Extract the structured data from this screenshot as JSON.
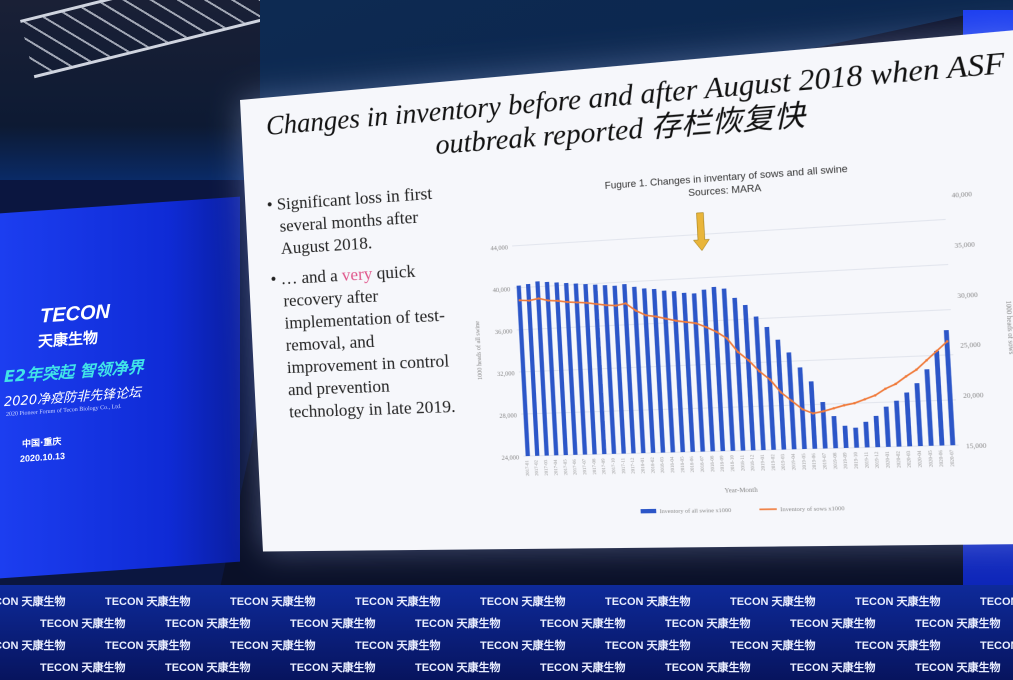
{
  "venue": {
    "pillar": {
      "logo": "TECON",
      "logo_cn": "天康生物",
      "slogan": "E2年突起 智领净界",
      "forum": "2020净疫防非先锋论坛",
      "forum_en": "2020 Pioneer Forum of Tecon Biology Co., Ltd.",
      "location": "中国·重庆",
      "date": "2020.10.13"
    },
    "stage_brand": "TECON 天康生物"
  },
  "slide": {
    "title": "Changes in inventory before and after August 2018 when ASF outbreak reported 存栏恢复快",
    "bullets": [
      {
        "text": "Significant loss in first several months after August 2018."
      },
      {
        "pre": "… and a ",
        "highlight": "very",
        "post": " quick recovery after implementation of test-removal, and improvement in control and prevention technology in late 2019."
      }
    ],
    "colors": {
      "bars": "#2c56c8",
      "line": "#f07a3a",
      "arrow": "#e9b53a",
      "highlight": "#e0558a"
    }
  },
  "chart_data": {
    "type": "bar+line",
    "title": "Fugure 1. Changes in inventary of sows and all swine",
    "subtitle": "Sources: MARA",
    "xlabel": "Year-Month",
    "ylabel_left": "1000 heads of all swine",
    "ylabel_right": "1000 heads of sows",
    "yleft_ticks": [
      "44,000",
      "40,000",
      "36,000",
      "32,000",
      "28,000",
      "24,000"
    ],
    "yleft_lim": [
      24000,
      44000
    ],
    "yright_ticks": [
      "40,000",
      "35,000",
      "30,000",
      "25,000",
      "20,000",
      "15,000"
    ],
    "yright_lim": [
      15000,
      40000
    ],
    "annotation": "arrow at 2018-08",
    "legend": "bottom",
    "x": [
      "2017-01",
      "2017-02",
      "2017-03",
      "2017-04",
      "2017-05",
      "2017-06",
      "2017-07",
      "2017-08",
      "2017-09",
      "2017-10",
      "2017-11",
      "2017-12",
      "2018-01",
      "2018-02",
      "2018-03",
      "2018-04",
      "2018-05",
      "2018-06",
      "2018-07",
      "2018-08",
      "2018-09",
      "2018-10",
      "2018-11",
      "2018-12",
      "2019-01",
      "2019-02",
      "2019-03",
      "2019-04",
      "2019-05",
      "2019-06",
      "2019-07",
      "2019-08",
      "2019-09",
      "2019-10",
      "2019-11",
      "2019-12",
      "2020-01",
      "2020-02",
      "2020-03",
      "2020-04",
      "2020-05",
      "2020-06",
      "2020-07"
    ],
    "series": [
      {
        "name": "Inventory of all swine x1000",
        "type": "bar",
        "axis": "left",
        "values": [
          40200,
          40300,
          40500,
          40400,
          40300,
          40200,
          40100,
          40000,
          39900,
          39800,
          39700,
          39800,
          39500,
          39300,
          39200,
          39000,
          38900,
          38700,
          38600,
          38900,
          39100,
          38900,
          38000,
          37300,
          36200,
          35200,
          34000,
          32800,
          31400,
          30100,
          28200,
          26900,
          26000,
          25800,
          26300,
          26800,
          27600,
          28100,
          28800,
          29600,
          30800,
          32400,
          34200
        ]
      },
      {
        "name": "Inventory of sows x1000",
        "type": "line",
        "axis": "right",
        "values": [
          33500,
          33400,
          33600,
          33300,
          33200,
          33000,
          32900,
          32800,
          32600,
          32400,
          32300,
          32500,
          31600,
          31000,
          30800,
          30500,
          30200,
          30000,
          29800,
          29300,
          28700,
          27900,
          26300,
          25300,
          24000,
          23000,
          21500,
          20500,
          19500,
          19000,
          19200,
          19500,
          19800,
          20000,
          20400,
          20800,
          21500,
          22000,
          22800,
          23500,
          24500,
          25500,
          26500
        ]
      }
    ]
  }
}
